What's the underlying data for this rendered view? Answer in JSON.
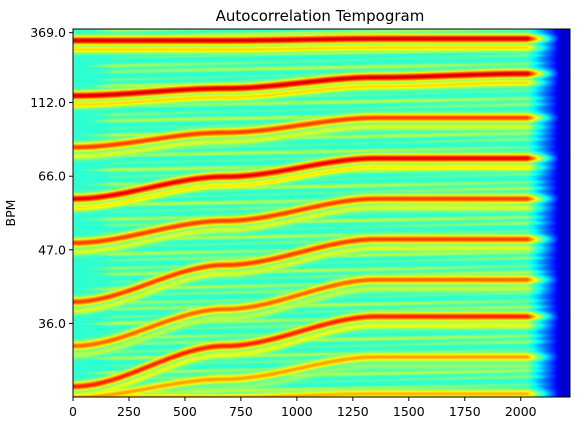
{
  "chart_data": {
    "type": "heatmap",
    "title": "Autocorrelation Tempogram",
    "xlabel": "",
    "ylabel": "BPM",
    "xlim": [
      0,
      2220
    ],
    "x_ticks": [
      0,
      250,
      500,
      750,
      1000,
      1250,
      1500,
      1750,
      2000
    ],
    "x_tick_labels": [
      "0",
      "250",
      "500",
      "750",
      "1000",
      "1250",
      "1500",
      "1750",
      "2000"
    ],
    "y_ticks": [
      {
        "label": "369.0",
        "frac": 0.01
      },
      {
        "label": "112.0",
        "frac": 0.2
      },
      {
        "label": "66.0",
        "frac": 0.4
      },
      {
        "label": "47.0",
        "frac": 0.6
      },
      {
        "label": "36.0",
        "frac": 0.8
      }
    ],
    "colormap": "jet",
    "colormap_stops": [
      "#00007f",
      "#0000ff",
      "#007fff",
      "#00ffff",
      "#7fff7f",
      "#ffff00",
      "#ff7f00",
      "#ff0000",
      "#7f0000"
    ],
    "grid": false,
    "legend": "none",
    "fade_start_x": 2030,
    "ridges": [
      {
        "y": [
          0.03,
          0.03,
          0.025,
          0.025
        ],
        "strength": 0.92
      },
      {
        "y": [
          0.18,
          0.16,
          0.13,
          0.12
        ],
        "strength": 0.92
      },
      {
        "y": [
          0.32,
          0.28,
          0.24,
          0.24
        ],
        "strength": 0.82
      },
      {
        "y": [
          0.46,
          0.4,
          0.35,
          0.35
        ],
        "strength": 0.9
      },
      {
        "y": [
          0.58,
          0.52,
          0.46,
          0.46
        ],
        "strength": 0.82
      },
      {
        "y": [
          0.74,
          0.64,
          0.57,
          0.57
        ],
        "strength": 0.82
      },
      {
        "y": [
          0.86,
          0.76,
          0.68,
          0.68
        ],
        "strength": 0.78
      },
      {
        "y": [
          0.97,
          0.86,
          0.78,
          0.78
        ],
        "strength": 0.85
      },
      {
        "y": [
          1.0,
          0.95,
          0.89,
          0.89
        ],
        "strength": 0.72
      },
      {
        "y": [
          1.0,
          1.0,
          0.99,
          0.99
        ],
        "strength": 0.7
      }
    ]
  }
}
